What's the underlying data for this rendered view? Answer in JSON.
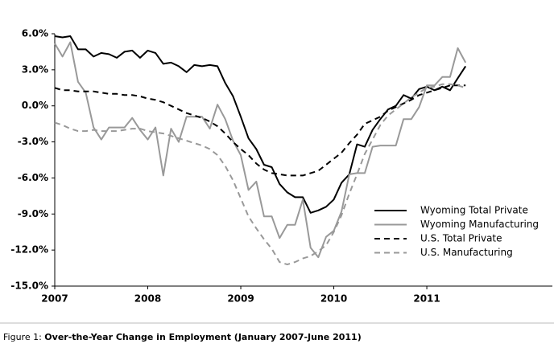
{
  "chart_data": {
    "type": "line",
    "caption_label": "Figure 1:",
    "caption": "Over-the-Year Change in Employment (January 2007-June 2011)",
    "x": [
      2007,
      2007.083,
      2007.167,
      2007.25,
      2007.333,
      2007.417,
      2007.5,
      2007.583,
      2007.667,
      2007.75,
      2007.833,
      2007.917,
      2008,
      2008.083,
      2008.167,
      2008.25,
      2008.333,
      2008.417,
      2008.5,
      2008.583,
      2008.667,
      2008.75,
      2008.833,
      2008.917,
      2009,
      2009.083,
      2009.167,
      2009.25,
      2009.333,
      2009.417,
      2009.5,
      2009.583,
      2009.667,
      2009.75,
      2009.833,
      2009.917,
      2010,
      2010.083,
      2010.167,
      2010.25,
      2010.333,
      2010.417,
      2010.5,
      2010.583,
      2010.667,
      2010.75,
      2010.833,
      2010.917,
      2011,
      2011.083,
      2011.167,
      2011.25,
      2011.333,
      2011.417
    ],
    "xlim": [
      2007,
      2012.35
    ],
    "xticks": [
      2007,
      2008,
      2009,
      2010,
      2011
    ],
    "ylim": [
      -15,
      6
    ],
    "yticks": [
      {
        "value": -15,
        "label": "-15.0%"
      },
      {
        "value": -12,
        "label": "-12.0%"
      },
      {
        "value": -9,
        "label": "-9.0%"
      },
      {
        "value": -6,
        "label": "-6.0%"
      },
      {
        "value": -3,
        "label": "-3.0%"
      },
      {
        "value": 0,
        "label": "0.0%"
      },
      {
        "value": 3,
        "label": "3.0%"
      },
      {
        "value": 6,
        "label": "6.0%"
      }
    ],
    "grid": false,
    "legend": "lower right",
    "series": [
      {
        "name": "Wyoming Total Private",
        "color": "#000000",
        "dashed": false,
        "values": [
          5.8,
          5.7,
          5.8,
          4.7,
          4.7,
          4.1,
          4.4,
          4.3,
          4.0,
          4.5,
          4.6,
          4.0,
          4.6,
          4.4,
          3.5,
          3.6,
          3.3,
          2.8,
          3.4,
          3.3,
          3.4,
          3.3,
          1.9,
          0.8,
          -0.9,
          -2.7,
          -3.6,
          -4.9,
          -5.1,
          -6.5,
          -7.2,
          -7.6,
          -7.6,
          -8.9,
          -8.7,
          -8.4,
          -7.8,
          -6.4,
          -5.7,
          -3.2,
          -3.4,
          -2.0,
          -1.1,
          -0.3,
          0.0,
          0.9,
          0.6,
          1.4,
          1.6,
          1.3,
          1.6,
          1.3,
          2.3,
          3.3
        ]
      },
      {
        "name": "Wyoming Manufacturing",
        "color": "#999999",
        "dashed": false,
        "values": [
          5.2,
          4.1,
          5.3,
          2.0,
          1.1,
          -1.8,
          -2.8,
          -1.8,
          -1.8,
          -1.8,
          -1.0,
          -2.0,
          -2.8,
          -1.8,
          -5.8,
          -1.9,
          -3.0,
          -0.9,
          -0.9,
          -0.9,
          -1.9,
          0.1,
          -1.1,
          -2.9,
          -4.1,
          -7.0,
          -6.3,
          -9.2,
          -9.2,
          -11.0,
          -9.9,
          -9.9,
          -7.8,
          -11.8,
          -12.6,
          -10.9,
          -10.4,
          -8.8,
          -5.7,
          -5.6,
          -5.6,
          -3.4,
          -3.3,
          -3.3,
          -3.3,
          -1.1,
          -1.1,
          -0.1,
          1.7,
          1.7,
          2.4,
          2.4,
          4.8,
          3.6
        ]
      },
      {
        "name": "U.S. Total Private",
        "color": "#000000",
        "dashed": true,
        "values": [
          1.5,
          1.3,
          1.3,
          1.2,
          1.2,
          1.2,
          1.1,
          1.0,
          1.0,
          0.9,
          0.9,
          0.8,
          0.6,
          0.5,
          0.3,
          0.0,
          -0.3,
          -0.6,
          -0.8,
          -1.0,
          -1.3,
          -1.7,
          -2.3,
          -3.0,
          -3.6,
          -4.1,
          -4.8,
          -5.3,
          -5.6,
          -5.7,
          -5.8,
          -5.8,
          -5.8,
          -5.6,
          -5.4,
          -4.9,
          -4.4,
          -3.9,
          -3.1,
          -2.4,
          -1.5,
          -1.2,
          -0.9,
          -0.4,
          -0.1,
          0.2,
          0.5,
          0.9,
          1.1,
          1.3,
          1.5,
          1.7,
          1.7,
          1.7
        ]
      },
      {
        "name": "U.S. Manufacturing",
        "color": "#999999",
        "dashed": true,
        "values": [
          -1.4,
          -1.6,
          -1.9,
          -2.1,
          -2.1,
          -2.0,
          -2.1,
          -2.1,
          -2.1,
          -2.0,
          -1.9,
          -1.9,
          -2.1,
          -2.2,
          -2.3,
          -2.5,
          -2.7,
          -2.9,
          -3.1,
          -3.3,
          -3.6,
          -4.1,
          -5.0,
          -6.2,
          -7.7,
          -9.2,
          -10.2,
          -11.1,
          -11.9,
          -13.0,
          -13.2,
          -13.0,
          -12.7,
          -12.5,
          -12.1,
          -11.6,
          -10.5,
          -9.1,
          -7.3,
          -5.7,
          -4.0,
          -2.8,
          -1.6,
          -0.8,
          -0.3,
          0.2,
          0.7,
          1.1,
          1.5,
          1.6,
          1.8,
          1.8,
          1.7,
          1.5
        ]
      }
    ]
  }
}
